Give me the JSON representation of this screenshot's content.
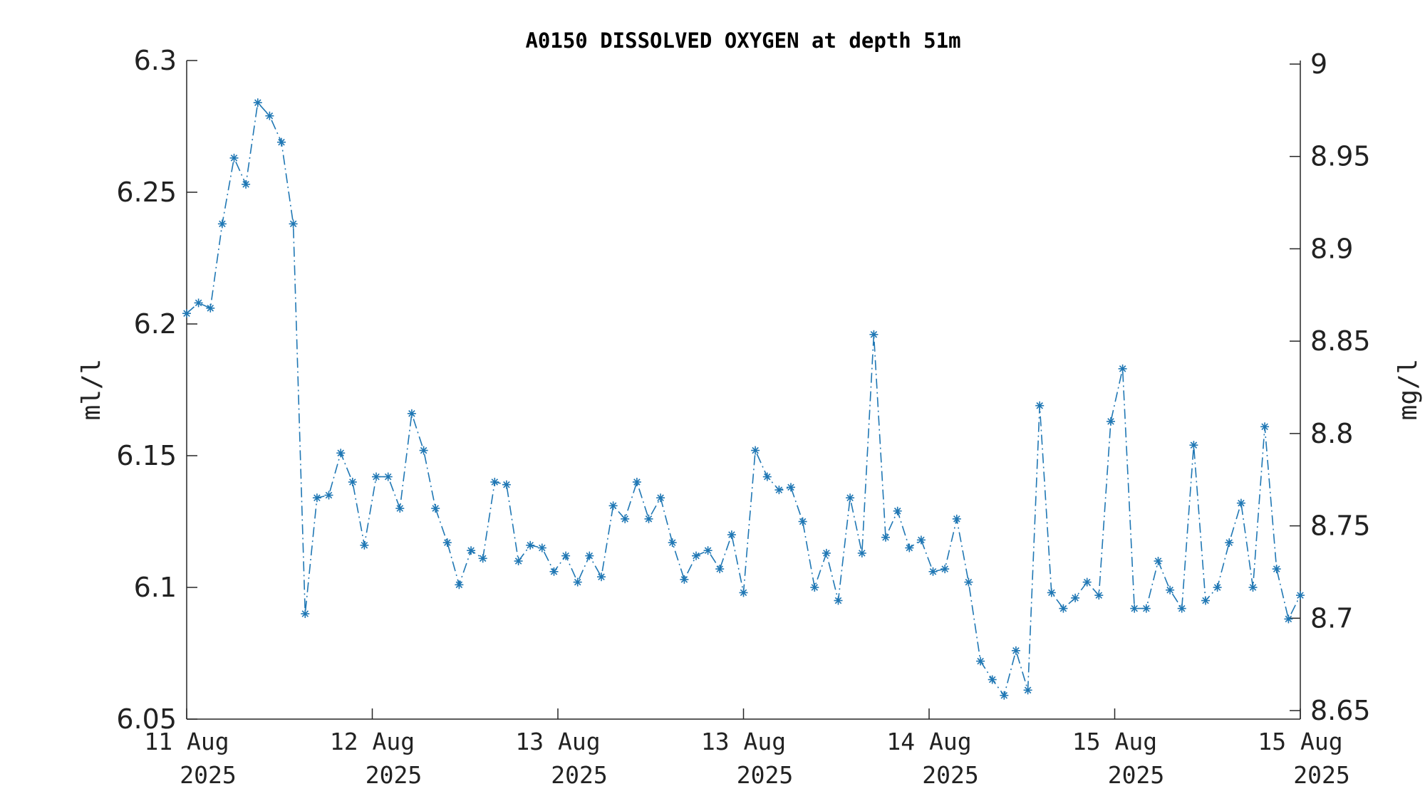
{
  "chart_data": {
    "type": "line",
    "title": "A0150 DISSOLVED OXYGEN at depth 51m",
    "ylabel_left": "ml/l",
    "ylabel_right": "mg/l",
    "ylim_left": [
      6.05,
      6.3
    ],
    "ylim_right": [
      8.65,
      9.0
    ],
    "yticks_left": [
      "6.05",
      "6.1",
      "6.15",
      "6.2",
      "6.25",
      "6.3"
    ],
    "yticks_right": [
      "8.65",
      "8.7",
      "8.75",
      "8.8",
      "8.85",
      "8.9",
      "8.95",
      "9"
    ],
    "xticks": [
      {
        "line1": "11 Aug",
        "line2": "2025"
      },
      {
        "line1": "12 Aug",
        "line2": "2025"
      },
      {
        "line1": "13 Aug",
        "line2": "2025"
      },
      {
        "line1": "13 Aug",
        "line2": "2025"
      },
      {
        "line1": "14 Aug",
        "line2": "2025"
      },
      {
        "line1": "15 Aug",
        "line2": "2025"
      },
      {
        "line1": "15 Aug",
        "line2": "2025"
      }
    ],
    "grid": false,
    "series": [
      {
        "color": "#1f77b4",
        "line_style": "dash-dot",
        "marker": "asterisk",
        "values": [
          6.204,
          6.208,
          6.206,
          6.238,
          6.263,
          6.253,
          6.284,
          6.279,
          6.269,
          6.238,
          6.09,
          6.134,
          6.135,
          6.151,
          6.14,
          6.116,
          6.142,
          6.142,
          6.13,
          6.166,
          6.152,
          6.13,
          6.117,
          6.101,
          6.114,
          6.111,
          6.14,
          6.139,
          6.11,
          6.116,
          6.115,
          6.106,
          6.112,
          6.102,
          6.112,
          6.104,
          6.131,
          6.126,
          6.14,
          6.126,
          6.134,
          6.117,
          6.103,
          6.112,
          6.114,
          6.107,
          6.12,
          6.098,
          6.152,
          6.142,
          6.137,
          6.138,
          6.125,
          6.1,
          6.113,
          6.095,
          6.134,
          6.113,
          6.196,
          6.119,
          6.129,
          6.115,
          6.118,
          6.106,
          6.107,
          6.126,
          6.102,
          6.072,
          6.065,
          6.059,
          6.076,
          6.061,
          6.169,
          6.098,
          6.092,
          6.096,
          6.102,
          6.097,
          6.163,
          6.183,
          6.092,
          6.092,
          6.11,
          6.099,
          6.092,
          6.154,
          6.095,
          6.1,
          6.117,
          6.132,
          6.1,
          6.161,
          6.107,
          6.088,
          6.097
        ]
      }
    ]
  }
}
